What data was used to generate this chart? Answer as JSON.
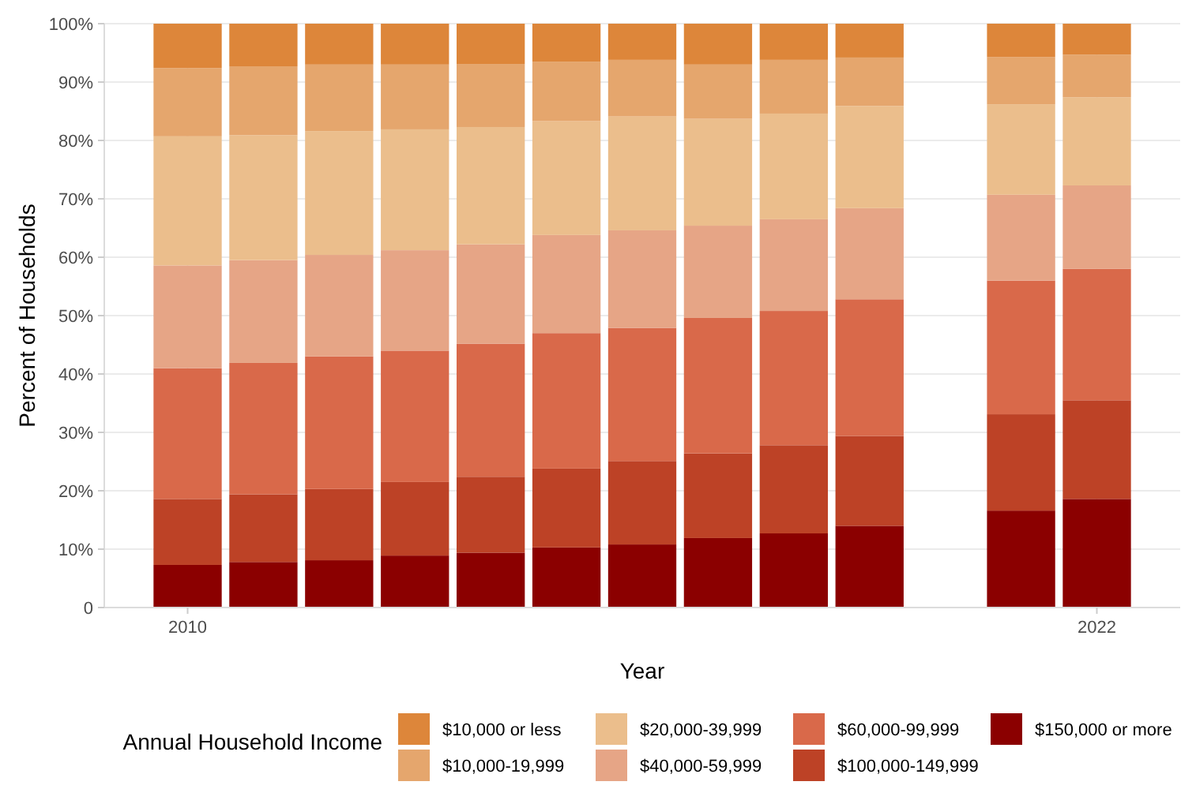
{
  "chart_data": {
    "type": "bar",
    "stacked": true,
    "xlabel": "Year",
    "ylabel": "Percent of Households",
    "legend_title": "Annual Household Income",
    "legend": "bottom",
    "grid": true,
    "x": [
      2010,
      2011,
      2012,
      2013,
      2014,
      2015,
      2016,
      2017,
      2018,
      2019,
      2021,
      2022
    ],
    "xlim": [
      2008.9,
      2023.1
    ],
    "xticks": [
      2010,
      2022
    ],
    "ylim": [
      0,
      100
    ],
    "yticks": [
      {
        "value": 0,
        "label": "0"
      },
      {
        "value": 10,
        "label": "10%"
      },
      {
        "value": 20,
        "label": "20%"
      },
      {
        "value": 30,
        "label": "30%"
      },
      {
        "value": 40,
        "label": "40%"
      },
      {
        "value": 50,
        "label": "50%"
      },
      {
        "value": 60,
        "label": "60%"
      },
      {
        "value": 70,
        "label": "70%"
      },
      {
        "value": 80,
        "label": "80%"
      },
      {
        "value": 90,
        "label": "90%"
      },
      {
        "value": 100,
        "label": "100%"
      }
    ],
    "series": [
      {
        "name": "$150,000 or more",
        "color": "#8b0000",
        "values": [
          7.3,
          7.8,
          8.1,
          8.9,
          9.4,
          10.3,
          10.8,
          11.9,
          12.7,
          14.0,
          16.6,
          18.6
        ]
      },
      {
        "name": "$100,000-149,999",
        "color": "#bd4226",
        "values": [
          11.3,
          11.6,
          12.2,
          12.6,
          13.0,
          13.5,
          14.3,
          14.5,
          15.1,
          15.4,
          16.5,
          16.9
        ]
      },
      {
        "name": "$60,000-99,999",
        "color": "#d9694a",
        "values": [
          22.4,
          22.5,
          22.7,
          22.5,
          22.8,
          23.2,
          22.8,
          23.2,
          23.0,
          23.4,
          22.9,
          22.5
        ]
      },
      {
        "name": "$40,000-59,999",
        "color": "#e6a586",
        "values": [
          17.6,
          17.6,
          17.4,
          17.2,
          17.0,
          16.8,
          16.7,
          15.8,
          15.7,
          15.6,
          14.7,
          14.3
        ]
      },
      {
        "name": "$20,000-39,999",
        "color": "#ebbe8c",
        "values": [
          22.1,
          21.4,
          21.2,
          20.7,
          20.1,
          19.5,
          19.5,
          18.3,
          18.1,
          17.5,
          15.5,
          15.1
        ]
      },
      {
        "name": "$10,000-19,999",
        "color": "#e5a66d",
        "values": [
          11.7,
          11.8,
          11.4,
          11.1,
          10.8,
          10.2,
          9.7,
          9.3,
          9.2,
          8.3,
          8.1,
          7.3
        ]
      },
      {
        "name": "$10,000 or less",
        "color": "#dd863a",
        "values": [
          7.6,
          7.3,
          7.0,
          7.0,
          6.9,
          6.5,
          6.2,
          7.0,
          6.2,
          5.8,
          5.7,
          5.3
        ]
      }
    ]
  }
}
